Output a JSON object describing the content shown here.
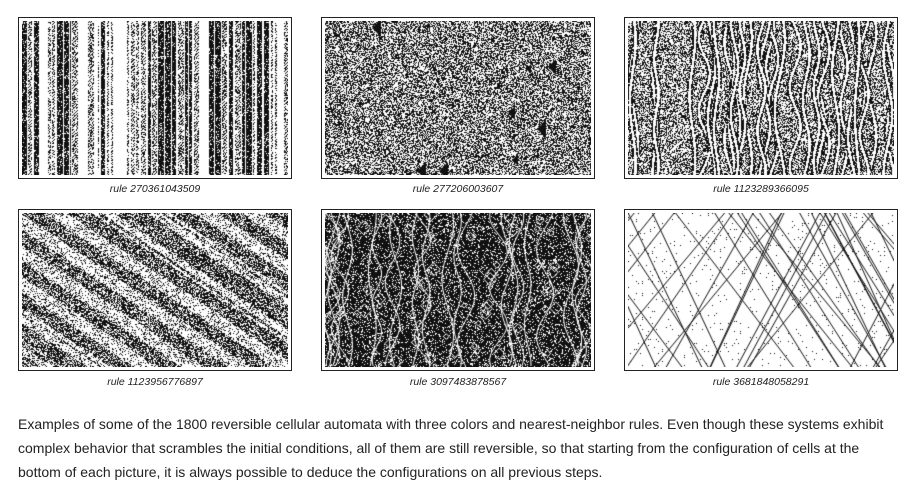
{
  "figures": [
    {
      "label": "rule 270361043509",
      "style": "stripes"
    },
    {
      "label": "rule 277206003607",
      "style": "noise"
    },
    {
      "label": "rule 1123289366095",
      "style": "wavy"
    },
    {
      "label": "rule 1123956776897",
      "style": "diagonal"
    },
    {
      "label": "rule 3097483878567",
      "style": "bubbles"
    },
    {
      "label": "rule 3681848058291",
      "style": "lattice"
    }
  ],
  "caption": "Examples of some of the 1800 reversible cellular automata with three colors and nearest-neighbor rules. Even though these systems exhibit complex behavior that scrambles the initial conditions, all of them are still reversible, so that starting from the configuration of cells at the bottom of each picture, it is always possible to deduce the configurations on all previous steps."
}
